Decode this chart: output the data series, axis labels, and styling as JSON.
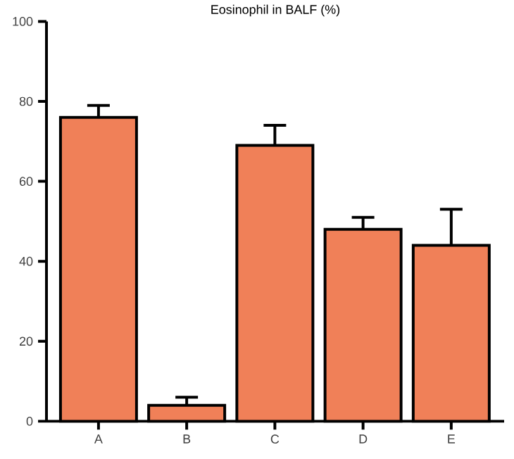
{
  "chart_data": {
    "type": "bar",
    "title": "Eosinophil in BALF (%)",
    "categories": [
      "A",
      "B",
      "C",
      "D",
      "E"
    ],
    "values": [
      76,
      4,
      69,
      48,
      44
    ],
    "errors": [
      3,
      2,
      5,
      3,
      9
    ],
    "color": "#f08058",
    "ylim": [
      0,
      100
    ],
    "yticks": [
      0,
      20,
      40,
      60,
      80,
      100
    ],
    "grid": false
  }
}
